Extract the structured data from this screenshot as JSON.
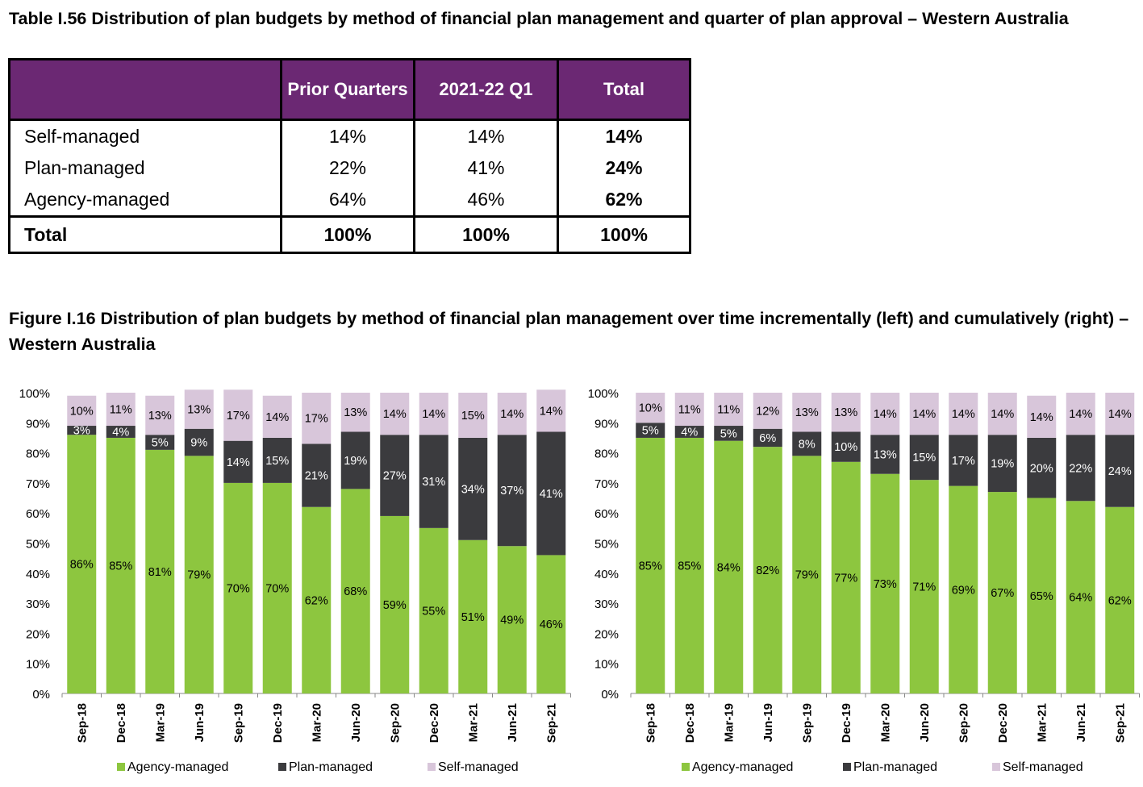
{
  "table": {
    "title": "Table I.56 Distribution of plan budgets by method of financial plan management and quarter of plan approval – Western Australia",
    "headers": [
      "",
      "Prior Quarters",
      "2021-22 Q1",
      "Total"
    ],
    "rows": [
      {
        "label": "Self-managed",
        "prior": "14%",
        "q1": "14%",
        "total": "14%"
      },
      {
        "label": "Plan-managed",
        "prior": "22%",
        "q1": "41%",
        "total": "24%"
      },
      {
        "label": "Agency-managed",
        "prior": "64%",
        "q1": "46%",
        "total": "62%"
      }
    ],
    "total_row": {
      "label": "Total",
      "prior": "100%",
      "q1": "100%",
      "total": "100%"
    },
    "header_color": "#6b2873"
  },
  "figure": {
    "title": "Figure I.16 Distribution of plan budgets by method of financial plan management over time incrementally (left) and cumulatively (right) – Western Australia"
  },
  "chart_data": [
    {
      "type": "bar",
      "stacked": true,
      "categories": [
        "Sep-18",
        "Dec-18",
        "Mar-19",
        "Jun-19",
        "Sep-19",
        "Dec-19",
        "Mar-20",
        "Jun-20",
        "Sep-20",
        "Dec-20",
        "Mar-21",
        "Jun-21",
        "Sep-21"
      ],
      "series": [
        {
          "name": "Agency-managed",
          "color": "#8dc63f",
          "values": [
            86,
            85,
            81,
            79,
            70,
            70,
            62,
            68,
            59,
            55,
            51,
            49,
            46
          ]
        },
        {
          "name": "Plan-managed",
          "color": "#3b3b3e",
          "values": [
            3,
            4,
            5,
            9,
            14,
            15,
            21,
            19,
            27,
            31,
            34,
            37,
            41
          ]
        },
        {
          "name": "Self-managed",
          "color": "#d8c6da",
          "values": [
            10,
            11,
            13,
            13,
            17,
            14,
            17,
            13,
            14,
            14,
            15,
            14,
            14
          ]
        }
      ],
      "ylim": [
        0,
        100
      ],
      "yticks": [
        "0%",
        "10%",
        "20%",
        "30%",
        "40%",
        "50%",
        "60%",
        "70%",
        "80%",
        "90%",
        "100%"
      ],
      "legend": "bottom"
    },
    {
      "type": "bar",
      "stacked": true,
      "categories": [
        "Sep-18",
        "Dec-18",
        "Mar-19",
        "Jun-19",
        "Sep-19",
        "Dec-19",
        "Mar-20",
        "Jun-20",
        "Sep-20",
        "Dec-20",
        "Mar-21",
        "Jun-21",
        "Sep-21"
      ],
      "series": [
        {
          "name": "Agency-managed",
          "color": "#8dc63f",
          "values": [
            85,
            85,
            84,
            82,
            79,
            77,
            73,
            71,
            69,
            67,
            65,
            64,
            62
          ]
        },
        {
          "name": "Plan-managed",
          "color": "#3b3b3e",
          "values": [
            5,
            4,
            5,
            6,
            8,
            10,
            13,
            15,
            17,
            19,
            20,
            22,
            24
          ]
        },
        {
          "name": "Self-managed",
          "color": "#d8c6da",
          "values": [
            10,
            11,
            11,
            12,
            13,
            13,
            14,
            14,
            14,
            14,
            14,
            14,
            14
          ]
        }
      ],
      "ylim": [
        0,
        100
      ],
      "yticks": [
        "0%",
        "10%",
        "20%",
        "30%",
        "40%",
        "50%",
        "60%",
        "70%",
        "80%",
        "90%",
        "100%"
      ],
      "legend": "bottom"
    }
  ]
}
